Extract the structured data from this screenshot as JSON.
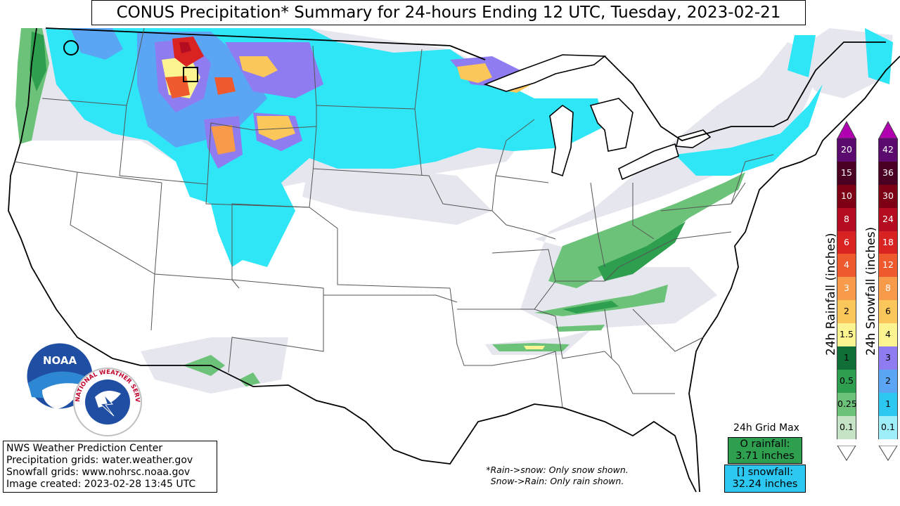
{
  "title": "CONUS Precipitation* Summary for 24-hours Ending 12 UTC, Tuesday, 2023-02-21",
  "credits": [
    "NWS Weather Prediction Center",
    "Precipitation grids: water.weather.gov",
    "Snowfall grids: www.nohrsc.noaa.gov",
    "Image created: 2023-02-28 13:45 UTC"
  ],
  "notes": [
    "*Rain->snow: Only snow shown.",
    "Snow->Rain: Only rain shown."
  ],
  "grid_max": {
    "title": "24h Grid Max",
    "rain_label": "O rainfall:",
    "rain_value": "3.71 inches",
    "snow_label": "[] snowfall:",
    "snow_value": "32.24 inches",
    "rain_color": "#2e9e4f",
    "snow_color": "#2cc8f2"
  },
  "logos": {
    "noaa_text": "NOAA",
    "nws_text": "NATIONAL WEATHER SERVICE"
  },
  "rain_scale": {
    "label": "24h Rainfall (inches)",
    "levels": [
      {
        "value": "20",
        "color": "#5b0a6e",
        "text_color": "#ffffff"
      },
      {
        "value": "15",
        "color": "#4a0022",
        "text_color": "#ffffff"
      },
      {
        "value": "10",
        "color": "#7d0014",
        "text_color": "#ffffff"
      },
      {
        "value": "8",
        "color": "#b40d22",
        "text_color": "#ffffff"
      },
      {
        "value": "6",
        "color": "#d92222",
        "text_color": "#ffffff"
      },
      {
        "value": "4",
        "color": "#ee5a2e",
        "text_color": "#ffffff"
      },
      {
        "value": "3",
        "color": "#f79a4a",
        "text_color": "#ffffff"
      },
      {
        "value": "2",
        "color": "#fcc75a",
        "text_color": "#000000"
      },
      {
        "value": "1.5",
        "color": "#fbf490",
        "text_color": "#000000"
      },
      {
        "value": "1",
        "color": "#116e36",
        "text_color": "#000000"
      },
      {
        "value": "0.5",
        "color": "#2e9e4f",
        "text_color": "#000000"
      },
      {
        "value": "0.25",
        "color": "#6dc27a",
        "text_color": "#000000"
      },
      {
        "value": "0.1",
        "color": "#c5e4c5",
        "text_color": "#000000"
      }
    ]
  },
  "snow_scale": {
    "label": "24h Snowfall (inches)",
    "levels": [
      {
        "value": "42",
        "color": "#5b0a6e",
        "text_color": "#ffffff"
      },
      {
        "value": "36",
        "color": "#4a0022",
        "text_color": "#ffffff"
      },
      {
        "value": "30",
        "color": "#7d0014",
        "text_color": "#ffffff"
      },
      {
        "value": "24",
        "color": "#b40d22",
        "text_color": "#ffffff"
      },
      {
        "value": "18",
        "color": "#d92222",
        "text_color": "#ffffff"
      },
      {
        "value": "12",
        "color": "#ee5a2e",
        "text_color": "#ffffff"
      },
      {
        "value": "8",
        "color": "#f79a4a",
        "text_color": "#ffffff"
      },
      {
        "value": "6",
        "color": "#fcc75a",
        "text_color": "#000000"
      },
      {
        "value": "4",
        "color": "#fbf490",
        "text_color": "#000000"
      },
      {
        "value": "3",
        "color": "#8e7cf0",
        "text_color": "#000000"
      },
      {
        "value": "2",
        "color": "#5aa6f5",
        "text_color": "#000000"
      },
      {
        "value": "1",
        "color": "#2cc8f2",
        "text_color": "#000000"
      },
      {
        "value": "0.1",
        "color": "#9deef8",
        "text_color": "#000000"
      }
    ]
  },
  "colors": {
    "trace": "#e6e6ee",
    "light_snow": "#2ee6f5"
  }
}
